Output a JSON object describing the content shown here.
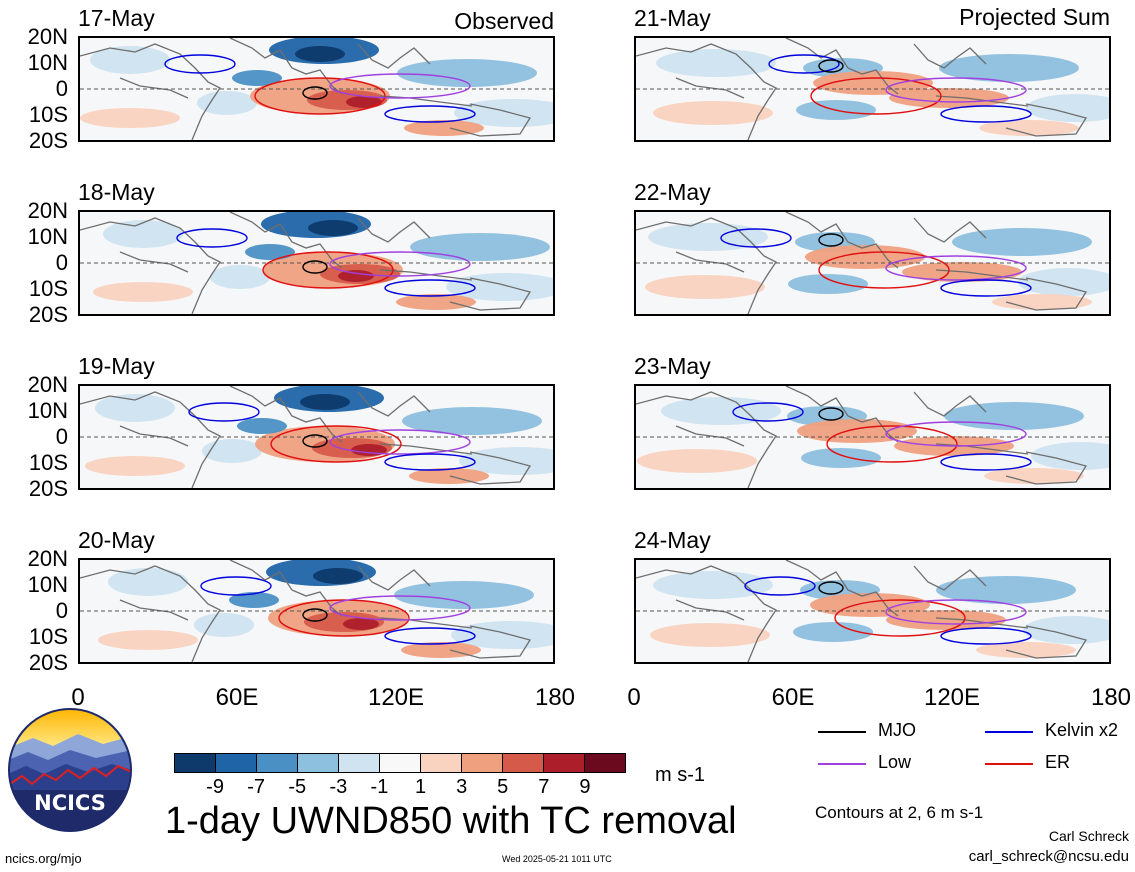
{
  "header": {
    "left_title": "Observed",
    "right_title": "Projected Sum"
  },
  "panels": [
    {
      "date": "17-May",
      "column": "left"
    },
    {
      "date": "18-May",
      "column": "left"
    },
    {
      "date": "19-May",
      "column": "left"
    },
    {
      "date": "20-May",
      "column": "left"
    },
    {
      "date": "21-May",
      "column": "right"
    },
    {
      "date": "22-May",
      "column": "right"
    },
    {
      "date": "23-May",
      "column": "right"
    },
    {
      "date": "24-May",
      "column": "right"
    }
  ],
  "lat_labels": [
    "20N",
    "10N",
    "0",
    "10S",
    "20S"
  ],
  "lon_labels": [
    "0",
    "60E",
    "120E",
    "180"
  ],
  "colorbar": {
    "ticks": [
      "-9",
      "-7",
      "-5",
      "-3",
      "-1",
      "1",
      "3",
      "5",
      "7",
      "9"
    ],
    "colors": [
      "#0d3a6b",
      "#2064a8",
      "#4a90c4",
      "#8dbfdf",
      "#cfe3f0",
      "#f8f8f8",
      "#f9d2c0",
      "#efa07f",
      "#d65a4a",
      "#ad1e2b",
      "#6b0a1e"
    ],
    "units": "m s-1"
  },
  "title": "1-day UWND850 with TC removal",
  "legend": {
    "items": [
      {
        "label": "MJO",
        "color": "#000000"
      },
      {
        "label": "Kelvin x2",
        "color": "#0000dd"
      },
      {
        "label": "Low",
        "color": "#a040e0"
      },
      {
        "label": "ER",
        "color": "#e01010"
      }
    ],
    "note": "Contours at 2, 6 m s-1"
  },
  "footer": {
    "site": "ncics.org/mjo",
    "timestamp": "Wed 2025-05-21 1011 UTC",
    "author": "Carl Schreck",
    "email": "carl_schreck@ncsu.edu",
    "logo_text": "NCICS"
  }
}
